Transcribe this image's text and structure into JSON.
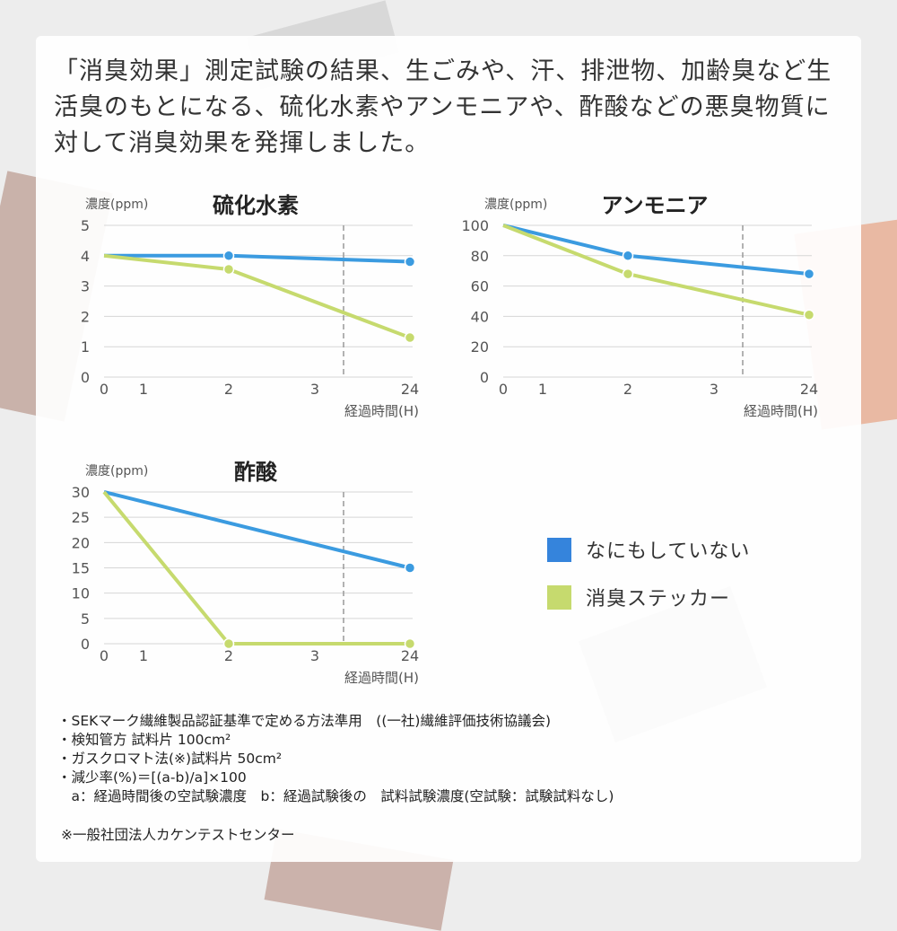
{
  "intro": "「消臭効果」測定試験の結果、生ごみや、汗、排泄物、加齢臭など生活臭のもとになる、硫化水素やアンモニアや、酢酸などの悪臭物質に対して消臭効果を発揮しました。",
  "colors": {
    "no_treatment": "#3b9be0",
    "sticker": "#c6da6e",
    "legend_blue": "#3584dc",
    "legend_green": "#c6da6e",
    "grid": "#d6d6d6",
    "dash": "#999999"
  },
  "chart_data": [
    {
      "type": "line",
      "title": "硫化水素",
      "ylabel": "濃度(ppm)",
      "xlabel": "経過時間(H)",
      "categories": [
        "0",
        "1",
        "2",
        "3",
        "24"
      ],
      "axis_break_between": [
        "3",
        "24"
      ],
      "ylim": [
        0,
        5
      ],
      "yticks": [
        "0",
        "1",
        "2",
        "3",
        "4",
        "5"
      ],
      "grid": true,
      "series": [
        {
          "name": "なにもしていない",
          "x": [
            "0",
            "2",
            "24"
          ],
          "values": [
            4.0,
            4.0,
            3.8
          ]
        },
        {
          "name": "消臭ステッカー",
          "x": [
            "0",
            "2",
            "24"
          ],
          "values": [
            4.0,
            3.55,
            1.3
          ]
        }
      ]
    },
    {
      "type": "line",
      "title": "アンモニア",
      "ylabel": "濃度(ppm)",
      "xlabel": "経過時間(H)",
      "categories": [
        "0",
        "1",
        "2",
        "3",
        "24"
      ],
      "axis_break_between": [
        "3",
        "24"
      ],
      "ylim": [
        0,
        100
      ],
      "yticks": [
        "0",
        "20",
        "40",
        "60",
        "80",
        "100"
      ],
      "grid": true,
      "series": [
        {
          "name": "なにもしていない",
          "x": [
            "0",
            "2",
            "24"
          ],
          "values": [
            100,
            80,
            68
          ]
        },
        {
          "name": "消臭ステッカー",
          "x": [
            "0",
            "2",
            "24"
          ],
          "values": [
            100,
            68,
            41
          ]
        }
      ]
    },
    {
      "type": "line",
      "title": "酢酸",
      "ylabel": "濃度(ppm)",
      "xlabel": "経過時間(H)",
      "categories": [
        "0",
        "1",
        "2",
        "3",
        "24"
      ],
      "axis_break_between": [
        "3",
        "24"
      ],
      "ylim": [
        0,
        30
      ],
      "yticks": [
        "0",
        "5",
        "10",
        "15",
        "20",
        "25",
        "30"
      ],
      "grid": true,
      "series": [
        {
          "name": "なにもしていない",
          "x": [
            "0",
            "24"
          ],
          "values": [
            30,
            15
          ]
        },
        {
          "name": "消臭ステッカー",
          "x": [
            "0",
            "2",
            "24"
          ],
          "values": [
            30,
            0,
            0
          ]
        }
      ]
    }
  ],
  "legend": {
    "placement": "right",
    "items": [
      {
        "label": "なにもしていない"
      },
      {
        "label": "消臭ステッカー"
      }
    ]
  },
  "notes": [
    "・SEKマーク繊維製品認証基準で定める方法準用　((一社)繊維評価技術協議会)",
    "・検知管方 試料片 100cm²",
    "・ガスクロマト法(※)試料片 50cm²",
    "・減少率(%)＝[(a-b)/a]×100",
    "　a：経過時間後の空試験濃度　b：経過試験後の　試料試験濃度(空試験：試験試料なし)"
  ],
  "credit": "※一般社団法人カケンテストセンター"
}
